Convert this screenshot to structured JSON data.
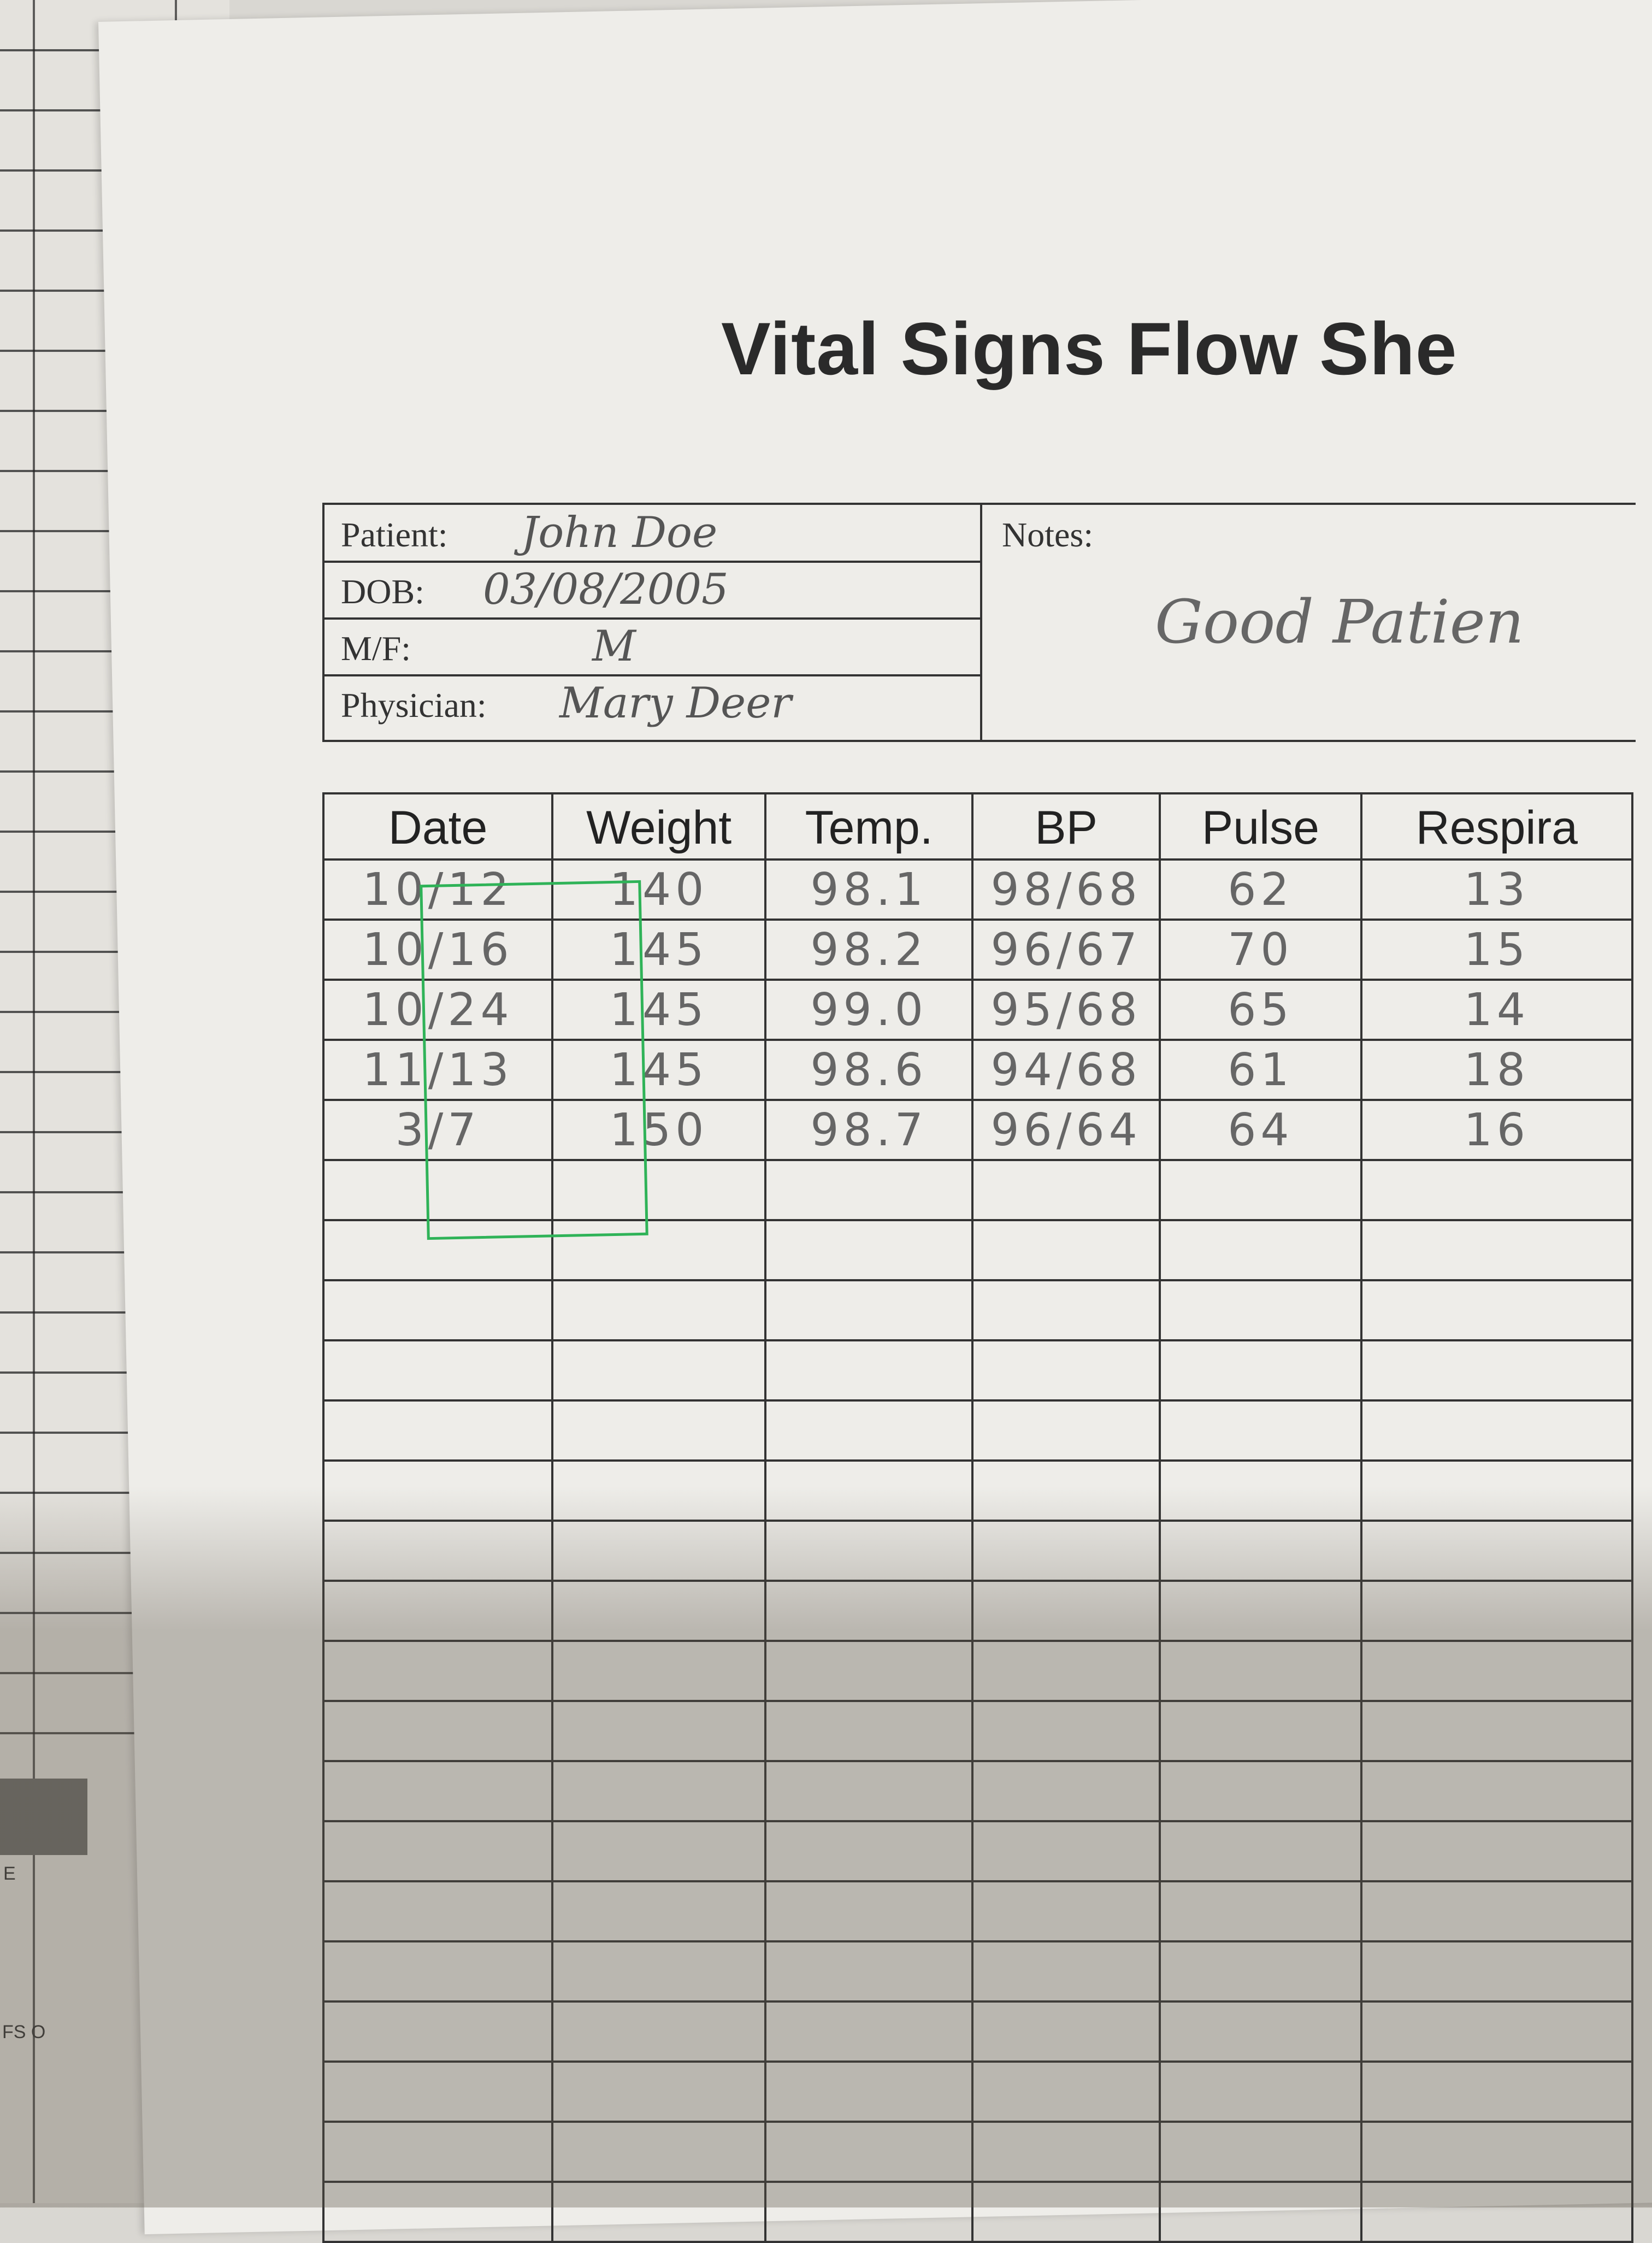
{
  "document": {
    "title": "Vital Signs Flow She",
    "patient": {
      "patient_label": "Patient:",
      "patient_value": "John Doe",
      "dob_label": "DOB:",
      "dob_value": "03/08/2005",
      "sex_label": "M/F:",
      "sex_value": "M",
      "physician_label": "Physician:",
      "physician_value": "Mary Deer",
      "notes_label": "Notes:",
      "notes_value": "Good Patien"
    },
    "table": {
      "columns": [
        "Date",
        "Weight",
        "Temp.",
        "BP",
        "Pulse",
        "Respira"
      ],
      "rows": [
        [
          "10/12",
          "140",
          "98.1",
          "98/68",
          "62",
          "13"
        ],
        [
          "10/16",
          "145",
          "98.2",
          "96/67",
          "70",
          "15"
        ],
        [
          "10/24",
          "145",
          "99.0",
          "95/68",
          "65",
          "14"
        ],
        [
          "11/13",
          "145",
          "98.6",
          "94/68",
          "61",
          "18"
        ],
        [
          "3/7",
          "150",
          "98.7",
          "96/64",
          "64",
          "16"
        ]
      ]
    },
    "background": {
      "fragment_1": "E",
      "fragment_2": "FS O"
    }
  }
}
